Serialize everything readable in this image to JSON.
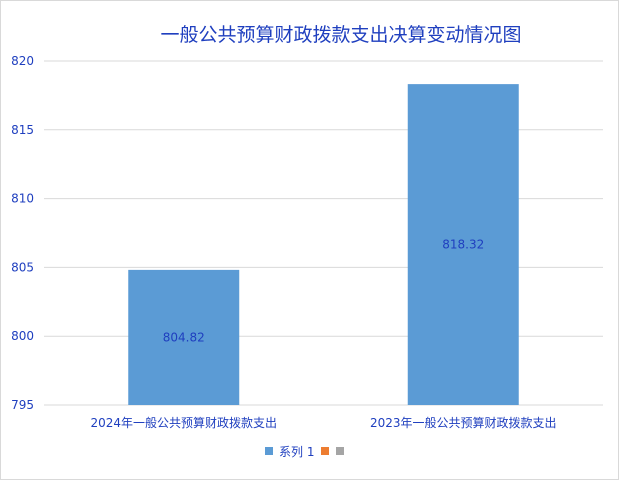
{
  "chart_data": {
    "type": "bar",
    "title": "一般公共预算财政拨款支出决算变动情况图",
    "categories": [
      "2024年一般公共预算财政拨款支出",
      "2023年一般公共预算财政拨款支出"
    ],
    "series": [
      {
        "name": "系列 1",
        "values": [
          804.82,
          818.32
        ],
        "labels": [
          "804.82",
          "818.32"
        ],
        "color": "#5b9bd5"
      }
    ],
    "legend_extra_colors": [
      "#ed7d31",
      "#a5a5a5"
    ],
    "ylim": [
      795,
      820
    ],
    "yticks": [
      795,
      800,
      805,
      810,
      815,
      820
    ],
    "grid": true,
    "legend": "bottom"
  }
}
